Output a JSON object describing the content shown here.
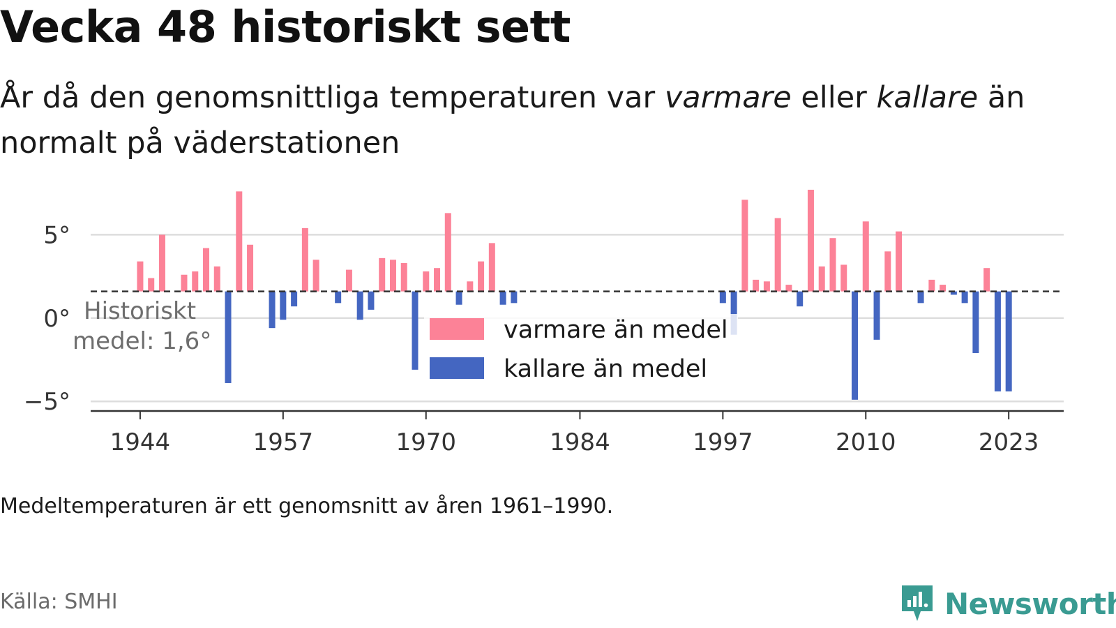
{
  "title": "Vecka 48 historiskt sett",
  "subtitle": {
    "part1": "År då den genomsnittliga temperaturen var ",
    "warm_word": "varmare",
    "part2": " eller ",
    "cold_word": "kallare",
    "part3": " än normalt på väderstationen"
  },
  "note": "Medeltemperaturen är ett genomsnitt av åren 1961–1990.",
  "source": "Källa: SMHI",
  "brand": {
    "name": "Newsworthy",
    "icon": "newsworthy-logo-icon"
  },
  "colors": {
    "warm": "#fc8297",
    "cold": "#4466c1",
    "grid": "#dddddd",
    "axis": "#333333",
    "average_line": "#333333"
  },
  "chart_data": {
    "type": "bar",
    "title": "Vecka 48 historiskt sett",
    "average": 1.6,
    "average_label_line1": "Historiskt",
    "average_label_line2": "medel: 1,6°",
    "ylim": [
      -7,
      8.2
    ],
    "yticks": [
      {
        "value": 5,
        "label": "5°"
      },
      {
        "value": 0,
        "label": "0°"
      },
      {
        "value": -5,
        "label": "−5°"
      }
    ],
    "xlim": [
      1939.5,
      2028
    ],
    "xticks": [
      {
        "value": 1944,
        "label": "1944"
      },
      {
        "value": 1957,
        "label": "1957"
      },
      {
        "value": 1970,
        "label": "1970"
      },
      {
        "value": 1984,
        "label": "1984"
      },
      {
        "value": 1997,
        "label": "1997"
      },
      {
        "value": 2010,
        "label": "2010"
      },
      {
        "value": 2023,
        "label": "2023"
      }
    ],
    "legend": [
      {
        "key": "warm",
        "label": "varmare än medel"
      },
      {
        "key": "cold",
        "label": "kallare än medel"
      }
    ],
    "legend_position": "center",
    "grid": true,
    "x": [
      1944,
      1945,
      1946,
      1948,
      1949,
      1950,
      1951,
      1952,
      1953,
      1954,
      1956,
      1957,
      1958,
      1959,
      1960,
      1962,
      1963,
      1964,
      1965,
      1966,
      1967,
      1968,
      1969,
      1970,
      1971,
      1972,
      1973,
      1974,
      1975,
      1976,
      1977,
      1978,
      1997,
      1998,
      1999,
      2000,
      2001,
      2002,
      2003,
      2004,
      2005,
      2006,
      2007,
      2008,
      2009,
      2010,
      2011,
      2012,
      2013,
      2015,
      2016,
      2017,
      2018,
      2019,
      2020,
      2021,
      2022,
      2023
    ],
    "values": [
      3.4,
      2.4,
      5.0,
      2.6,
      2.8,
      4.2,
      3.1,
      -3.9,
      7.6,
      4.4,
      -0.6,
      -0.1,
      0.7,
      5.4,
      3.5,
      0.9,
      2.9,
      -0.1,
      0.5,
      3.6,
      3.5,
      3.3,
      -3.1,
      2.8,
      3.0,
      6.3,
      0.8,
      2.2,
      3.4,
      4.5,
      0.8,
      0.9,
      0.9,
      -1.0,
      7.1,
      2.3,
      2.2,
      6.0,
      2.0,
      0.7,
      7.7,
      3.1,
      4.8,
      3.2,
      -4.9,
      5.8,
      -1.3,
      4.0,
      5.2,
      0.9,
      2.3,
      2.0,
      1.4,
      0.9,
      -2.1,
      3.0,
      -4.4,
      -4.4
    ],
    "series_key": "values"
  }
}
